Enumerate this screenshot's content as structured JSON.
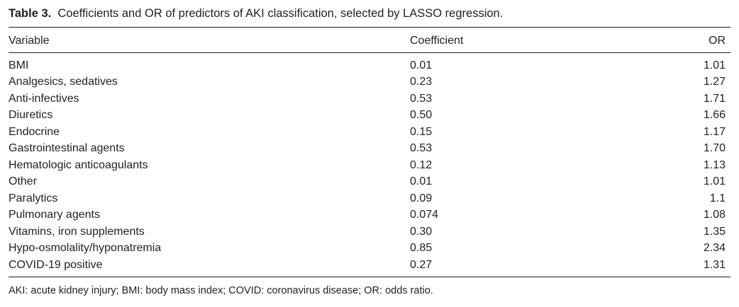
{
  "caption": {
    "label": "Table 3.",
    "text": "Coefficients and OR of predictors of AKI classification, selected by LASSO regression."
  },
  "table": {
    "headers": [
      "Variable",
      "Coefficient",
      "OR"
    ],
    "rows": [
      [
        "BMI",
        "0.01",
        "1.01"
      ],
      [
        "Analgesics, sedatives",
        "0.23",
        "1.27"
      ],
      [
        "Anti-infectives",
        "0.53",
        "1.71"
      ],
      [
        "Diuretics",
        "0.50",
        "1.66"
      ],
      [
        "Endocrine",
        "0.15",
        "1.17"
      ],
      [
        "Gastrointestinal agents",
        "0.53",
        "1.70"
      ],
      [
        "Hematologic anticoagulants",
        "0.12",
        "1.13"
      ],
      [
        "Other",
        "0.01",
        "1.01"
      ],
      [
        "Paralytics",
        "0.09",
        "1.1"
      ],
      [
        "Pulmonary agents",
        "0.074",
        "1.08"
      ],
      [
        "Vitamins, iron supplements",
        "0.30",
        "1.35"
      ],
      [
        "Hypo-osmolality/hyponatremia",
        "0.85",
        "2.34"
      ],
      [
        "COVID-19 positive",
        "0.27",
        "1.31"
      ]
    ]
  },
  "footnote": "AKI: acute kidney injury; BMI: body mass index; COVID: coronavirus disease; OR: odds ratio."
}
